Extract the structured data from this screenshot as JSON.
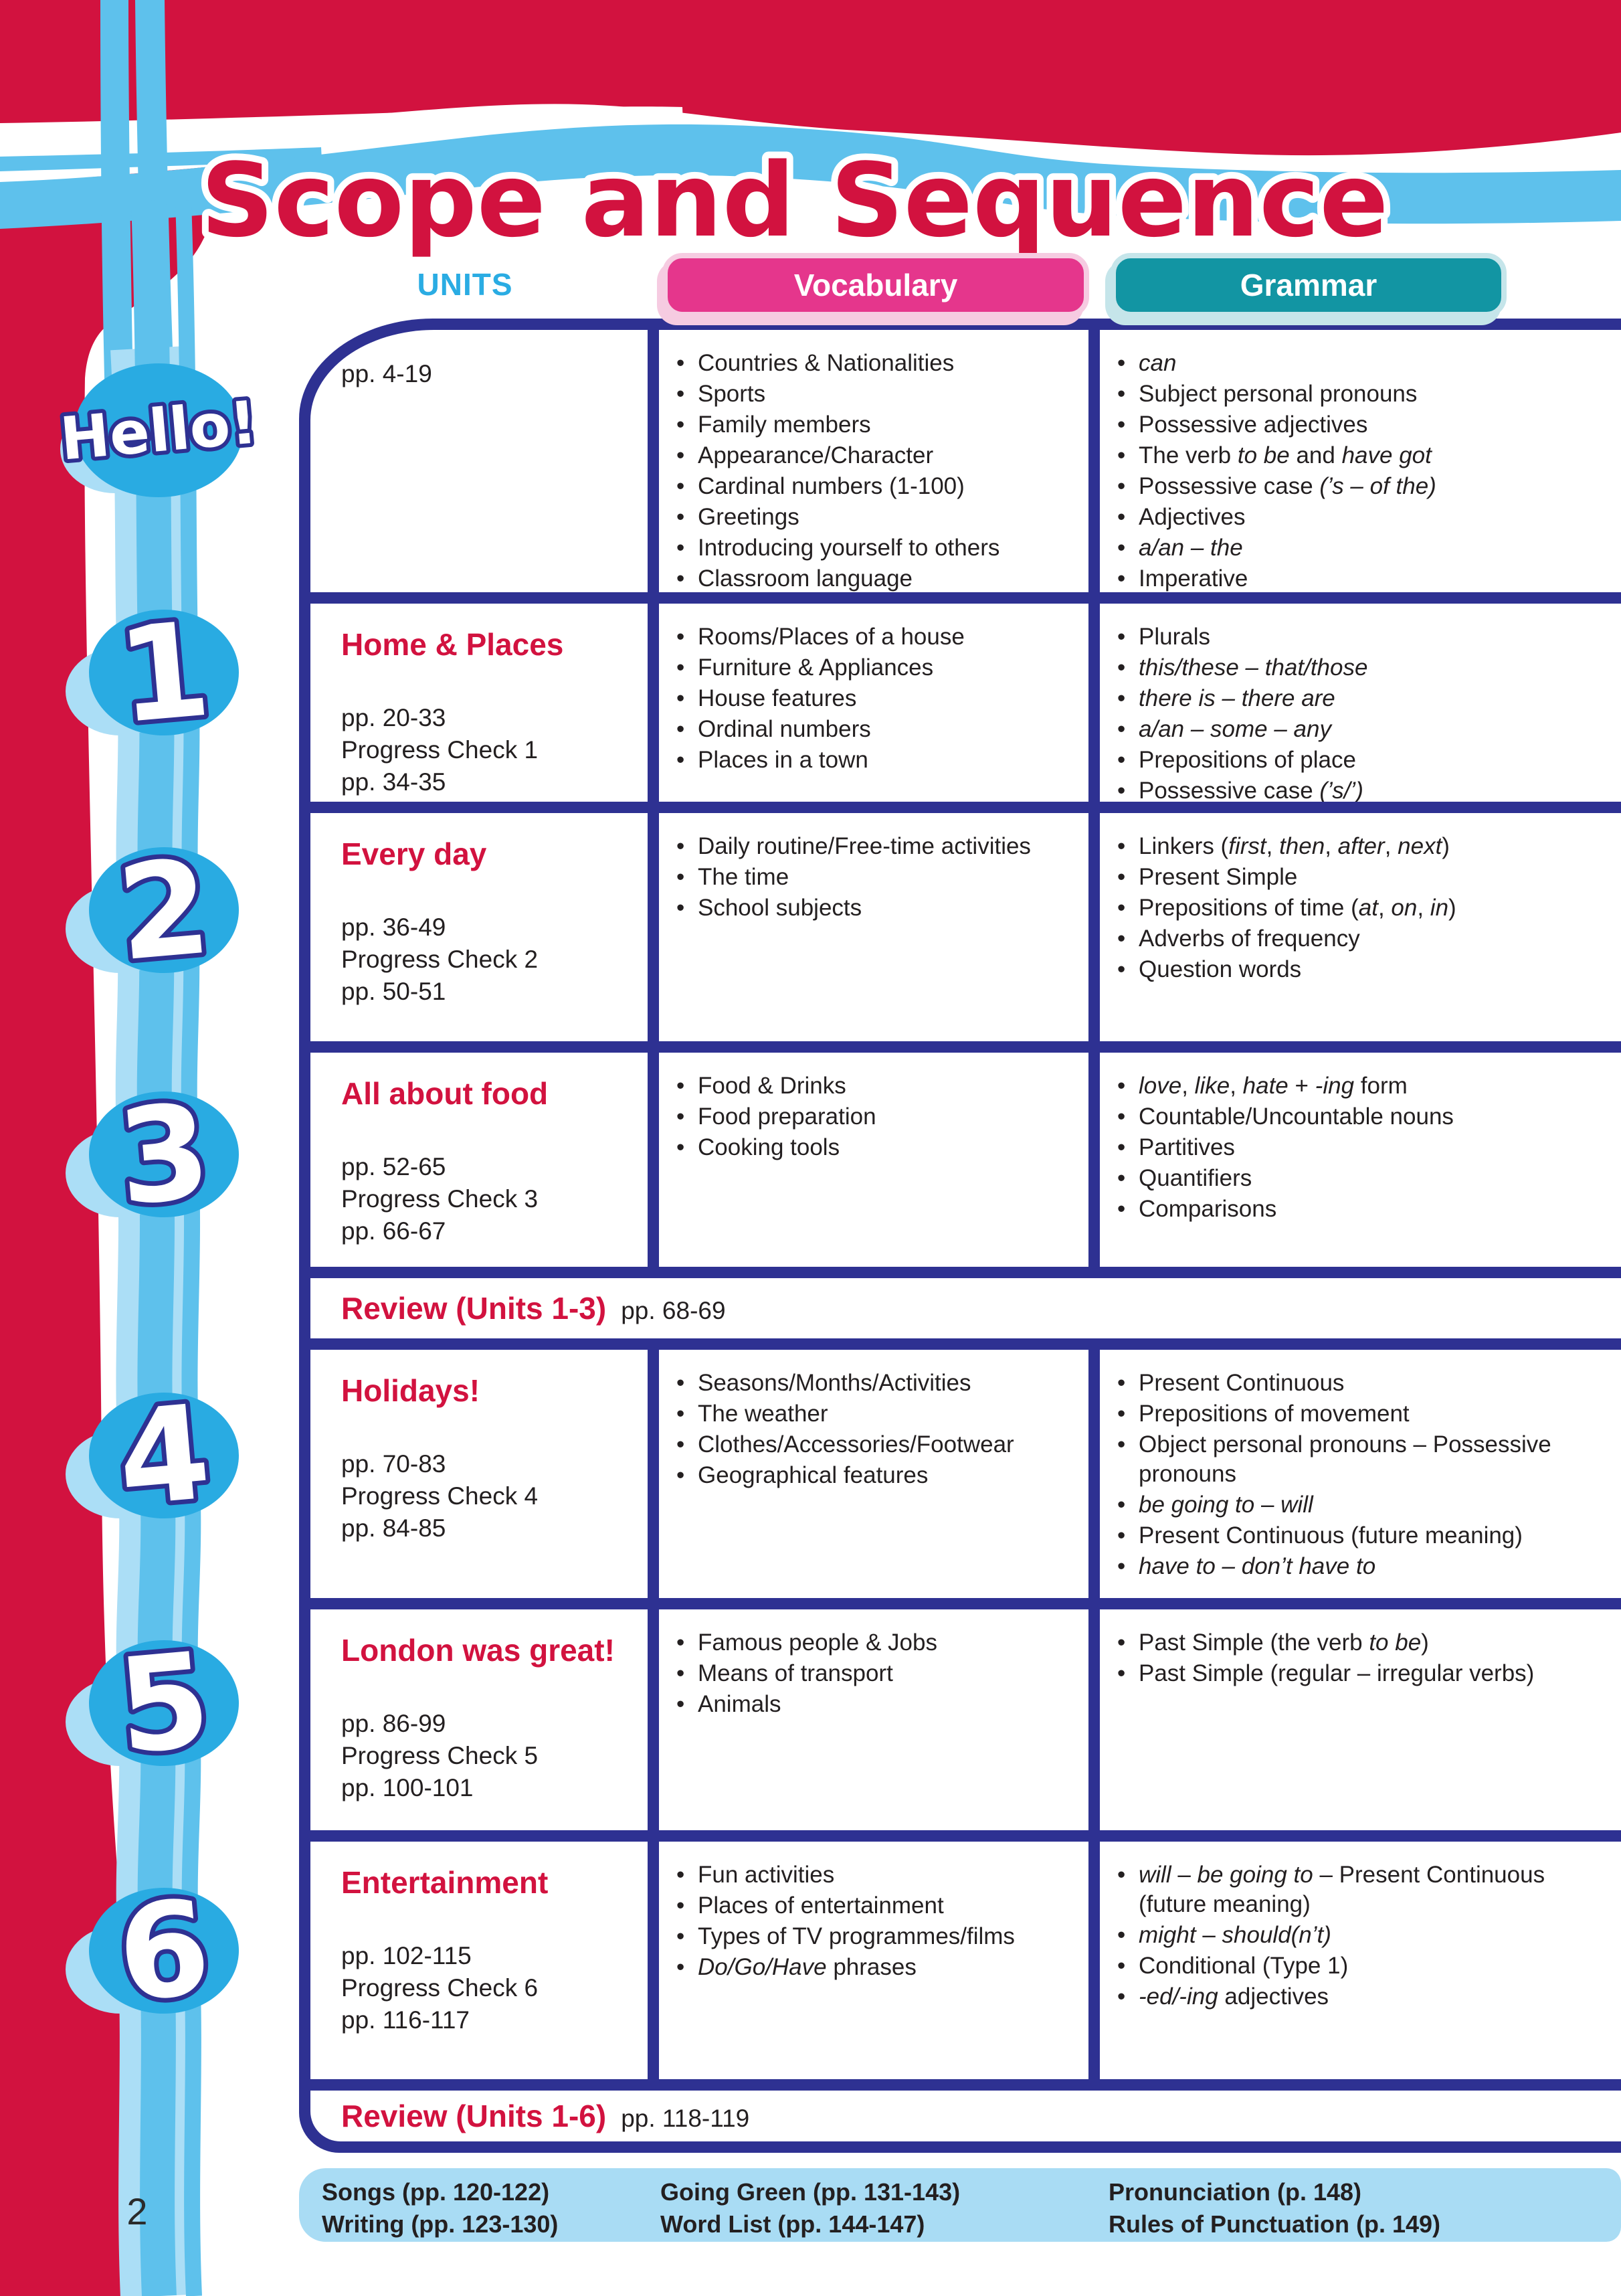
{
  "page": {
    "title": "Scope and Sequence",
    "page_number": "2",
    "colors": {
      "crimson": "#d2123f",
      "navy": "#2e3192",
      "ribbon_blue": "#5ec1ec",
      "light_ribbon_blue": "#abdef6",
      "blob_blue": "#29abe2",
      "units_blue": "#2aace3",
      "vocabulary_pink": "#e5368c",
      "grammar_teal": "#1295a3",
      "footer_light_blue": "#a9dcf4"
    }
  },
  "header": {
    "units_label": "UNITS",
    "vocabulary_label": "Vocabulary",
    "grammar_label": "Grammar"
  },
  "table": {
    "rows": [
      {
        "badge": "Hello!",
        "title": "",
        "pages": [
          "pp. 4-19"
        ],
        "vocabulary": [
          "Countries & Nationalities",
          "Sports",
          "Family members",
          "Appearance/Character",
          "Cardinal numbers (1-100)",
          "Greetings",
          "Introducing yourself to others",
          "Classroom language"
        ],
        "grammar": [
          "*can*",
          "Subject personal pronouns",
          "Possessive adjectives",
          "The verb *to be* and *have got*",
          "Possessive case *(’s – of the)*",
          "Adjectives",
          "*a/an – the*",
          "Imperative"
        ]
      },
      {
        "badge": "1",
        "title": "Home & Places",
        "pages": [
          "pp. 20-33",
          "Progress Check 1",
          "pp. 34-35"
        ],
        "vocabulary": [
          "Rooms/Places of a house",
          "Furniture & Appliances",
          "House features",
          "Ordinal numbers",
          "Places in a town"
        ],
        "grammar": [
          "Plurals",
          "*this/these – that/those*",
          "*there is – there are*",
          "*a/an – some – any*",
          "Prepositions of place",
          "Possessive case *(’s/’)*"
        ]
      },
      {
        "badge": "2",
        "title": "Every day",
        "pages": [
          "pp. 36-49",
          "Progress Check 2",
          "pp. 50-51"
        ],
        "vocabulary": [
          "Daily routine/Free-time activities",
          "The time",
          "School subjects"
        ],
        "grammar": [
          "Linkers (*first*, *then*, *after*, *next*)",
          "Present Simple",
          "Prepositions of time (*at*, *on*, *in*)",
          "Adverbs of frequency",
          "Question words"
        ]
      },
      {
        "badge": "3",
        "title": "All about food",
        "pages": [
          "pp. 52-65",
          "Progress Check 3",
          "pp. 66-67"
        ],
        "vocabulary": [
          "Food & Drinks",
          "Food preparation",
          "Cooking tools"
        ],
        "grammar": [
          "*love*, *like*, *hate* + *-ing* form",
          "Countable/Uncountable nouns",
          "Partitives",
          "Quantifiers",
          "Comparisons"
        ]
      },
      {
        "badge": "4",
        "title": "Holidays!",
        "pages": [
          "pp. 70-83",
          "Progress Check 4",
          "pp. 84-85"
        ],
        "vocabulary": [
          "Seasons/Months/Activities",
          "The weather",
          "Clothes/Accessories/Footwear",
          "Geographical features"
        ],
        "grammar": [
          "Present Continuous",
          "Prepositions of movement",
          "Object personal pronouns – Possessive pronouns",
          "*be going to* – *will*",
          "Present Continuous (future meaning)",
          "*have to – don’t have to*"
        ]
      },
      {
        "badge": "5",
        "title": "London was great!",
        "pages": [
          "pp. 86-99",
          "Progress Check 5",
          "pp. 100-101"
        ],
        "vocabulary": [
          "Famous people & Jobs",
          "Means of transport",
          "Animals"
        ],
        "grammar": [
          "Past Simple (the verb *to be*)",
          "Past Simple (regular – irregular verbs)"
        ]
      },
      {
        "badge": "6",
        "title": "Entertainment",
        "pages": [
          "pp. 102-115",
          "Progress Check 6",
          "pp. 116-117"
        ],
        "vocabulary": [
          "Fun activities",
          "Places of entertainment",
          "Types of TV programmes/films",
          "*Do/Go/Have* phrases"
        ],
        "grammar": [
          "*will* – *be going to* – Present Continuous (future meaning)",
          "*might* – *should(n’t)*",
          "Conditional (Type 1)",
          "*-ed/-ing* adjectives"
        ]
      }
    ],
    "reviews": [
      {
        "label": "Review (Units 1-3)",
        "pages": "pp. 68-69"
      },
      {
        "label": "Review (Units 1-6)",
        "pages": "pp. 118-119"
      }
    ]
  },
  "footer": {
    "columns": [
      [
        "Songs (pp. 120-122)",
        "Writing (pp. 123-130)"
      ],
      [
        "Going Green (pp. 131-143)",
        "Word List (pp. 144-147)"
      ],
      [
        "Pronunciation (p. 148)",
        "Rules of Punctuation (p. 149)"
      ]
    ]
  }
}
